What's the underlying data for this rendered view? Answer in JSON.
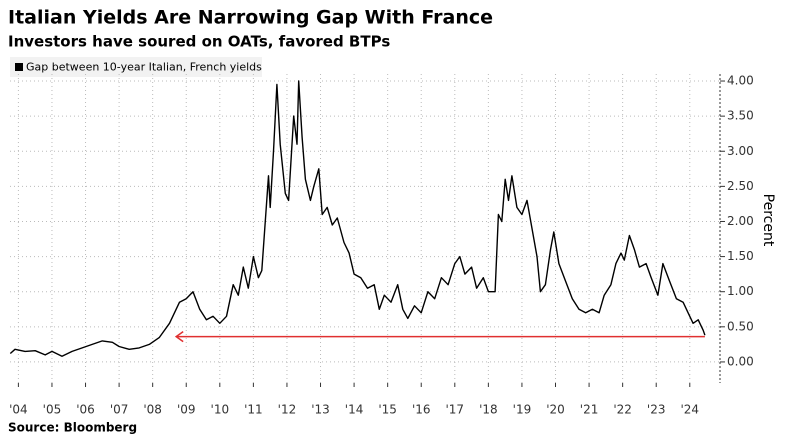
{
  "chart_data": {
    "type": "line",
    "title": "Italian Yields Are Narrowing Gap With France",
    "subtitle": "Investors have soured on OATs, favored BTPs",
    "source": "Source: Bloomberg",
    "y_axis_label": "Percent",
    "legend": "top-left",
    "grid": true,
    "xlim": [
      2003.75,
      2024.9
    ],
    "xticks": [
      {
        "value": 2004,
        "label": "'04"
      },
      {
        "value": 2005,
        "label": "'05"
      },
      {
        "value": 2006,
        "label": "'06"
      },
      {
        "value": 2007,
        "label": "'07"
      },
      {
        "value": 2008,
        "label": "'08"
      },
      {
        "value": 2009,
        "label": "'09"
      },
      {
        "value": 2010,
        "label": "'10"
      },
      {
        "value": 2011,
        "label": "'11"
      },
      {
        "value": 2012,
        "label": "'12"
      },
      {
        "value": 2013,
        "label": "'13"
      },
      {
        "value": 2014,
        "label": "'14"
      },
      {
        "value": 2015,
        "label": "'15"
      },
      {
        "value": 2016,
        "label": "'16"
      },
      {
        "value": 2017,
        "label": "'17"
      },
      {
        "value": 2018,
        "label": "'18"
      },
      {
        "value": 2019,
        "label": "'19"
      },
      {
        "value": 2020,
        "label": "'20"
      },
      {
        "value": 2021,
        "label": "'21"
      },
      {
        "value": 2022,
        "label": "'22"
      },
      {
        "value": 2023,
        "label": "'23"
      },
      {
        "value": 2024,
        "label": "'24"
      }
    ],
    "ylim": [
      -0.3,
      4.1
    ],
    "yticks": [
      {
        "value": 0,
        "label": "0.00"
      },
      {
        "value": 0.5,
        "label": "0.50"
      },
      {
        "value": 1,
        "label": "1.00"
      },
      {
        "value": 1.5,
        "label": "1.50"
      },
      {
        "value": 2,
        "label": "2.00"
      },
      {
        "value": 2.5,
        "label": "2.50"
      },
      {
        "value": 3,
        "label": "3.00"
      },
      {
        "value": 3.5,
        "label": "3.50"
      },
      {
        "value": 4,
        "label": "4.00"
      }
    ],
    "reference_arrow": {
      "y": 0.36,
      "x": [
        2008.7,
        2024.45
      ],
      "color": "#e03030"
    },
    "x": [
      2003.76,
      2003.9,
      2004.2,
      2004.5,
      2004.8,
      2005.0,
      2005.3,
      2005.6,
      2005.9,
      2006.2,
      2006.5,
      2006.8,
      2007.0,
      2007.3,
      2007.6,
      2007.9,
      2008.2,
      2008.5,
      2008.8,
      2009.0,
      2009.2,
      2009.4,
      2009.6,
      2009.8,
      2010.0,
      2010.2,
      2010.4,
      2010.55,
      2010.7,
      2010.85,
      2011.0,
      2011.15,
      2011.25,
      2011.45,
      2011.5,
      2011.6,
      2011.7,
      2011.8,
      2011.95,
      2012.05,
      2012.2,
      2012.3,
      2012.35,
      2012.45,
      2012.55,
      2012.7,
      2012.8,
      2012.95,
      2013.05,
      2013.2,
      2013.35,
      2013.5,
      2013.7,
      2013.85,
      2014.0,
      2014.2,
      2014.4,
      2014.6,
      2014.75,
      2014.9,
      2015.1,
      2015.3,
      2015.45,
      2015.6,
      2015.8,
      2016.0,
      2016.2,
      2016.4,
      2016.6,
      2016.8,
      2017.0,
      2017.15,
      2017.3,
      2017.5,
      2017.65,
      2017.85,
      2018.0,
      2018.2,
      2018.3,
      2018.4,
      2018.5,
      2018.6,
      2018.7,
      2018.85,
      2019.0,
      2019.15,
      2019.3,
      2019.45,
      2019.55,
      2019.7,
      2019.85,
      2019.95,
      2020.1,
      2020.3,
      2020.5,
      2020.7,
      2020.9,
      2021.1,
      2021.3,
      2021.45,
      2021.65,
      2021.8,
      2021.95,
      2022.05,
      2022.2,
      2022.35,
      2022.5,
      2022.7,
      2022.85,
      2023.05,
      2023.2,
      2023.4,
      2023.6,
      2023.8,
      2023.95,
      2024.1,
      2024.25,
      2024.4,
      2024.45
    ],
    "series": [
      {
        "name": "Gap between 10-year Italian, French yields",
        "color": "#000000",
        "values": [
          0.12,
          0.18,
          0.15,
          0.16,
          0.1,
          0.15,
          0.08,
          0.15,
          0.2,
          0.25,
          0.3,
          0.28,
          0.22,
          0.18,
          0.2,
          0.25,
          0.35,
          0.55,
          0.85,
          0.9,
          1.0,
          0.75,
          0.6,
          0.65,
          0.55,
          0.65,
          1.1,
          0.95,
          1.35,
          1.05,
          1.5,
          1.2,
          1.3,
          2.65,
          2.2,
          3.0,
          3.95,
          3.1,
          2.4,
          2.3,
          3.5,
          3.1,
          4.0,
          3.2,
          2.6,
          2.3,
          2.5,
          2.75,
          2.1,
          2.2,
          1.95,
          2.05,
          1.7,
          1.55,
          1.25,
          1.2,
          1.05,
          1.1,
          0.75,
          0.95,
          0.85,
          1.1,
          0.75,
          0.62,
          0.8,
          0.7,
          1.0,
          0.9,
          1.2,
          1.1,
          1.4,
          1.5,
          1.25,
          1.35,
          1.05,
          1.2,
          1.0,
          1.0,
          2.1,
          2.0,
          2.6,
          2.3,
          2.65,
          2.2,
          2.1,
          2.3,
          1.9,
          1.5,
          1.0,
          1.1,
          1.6,
          1.85,
          1.4,
          1.15,
          0.9,
          0.75,
          0.7,
          0.75,
          0.7,
          0.95,
          1.1,
          1.4,
          1.55,
          1.45,
          1.8,
          1.6,
          1.35,
          1.4,
          1.2,
          0.95,
          1.4,
          1.15,
          0.9,
          0.85,
          0.7,
          0.55,
          0.6,
          0.45,
          0.38
        ]
      }
    ]
  }
}
